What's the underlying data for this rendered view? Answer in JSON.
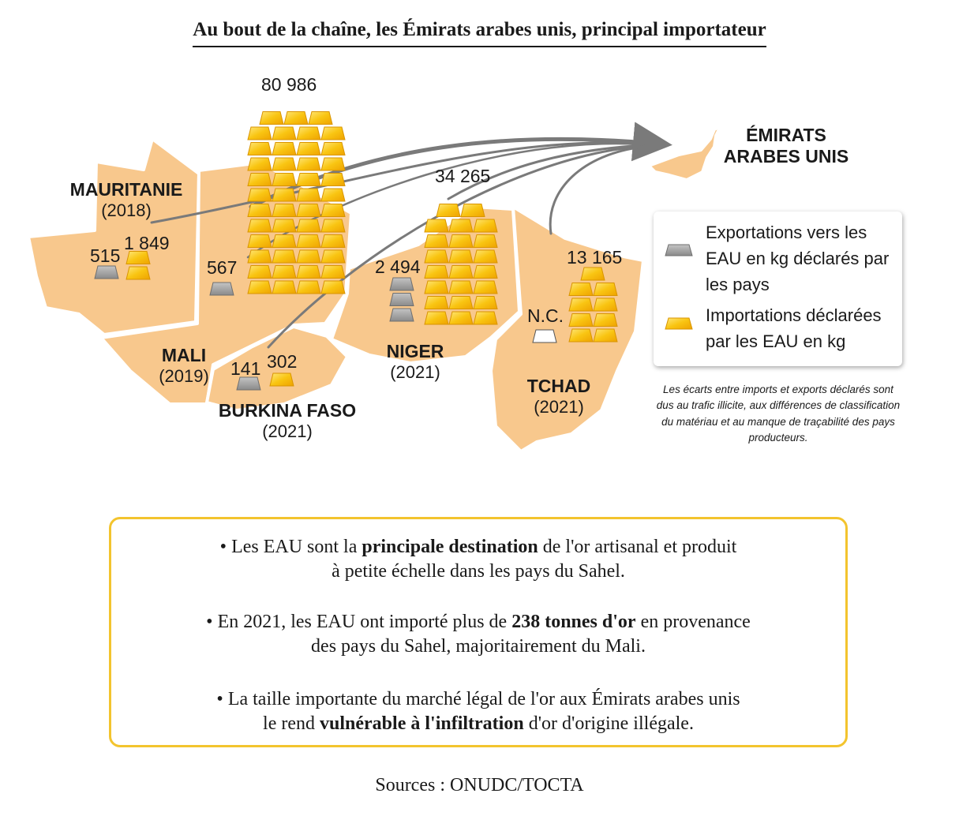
{
  "title": "Au bout de la chaîne, les Émirats arabes unis, principal importateur",
  "destination": {
    "line1": "ÉMIRATS",
    "line2": "ARABES UNIS"
  },
  "countries": [
    {
      "key": "mauritanie",
      "name": "MAURITANIE",
      "year": "(2018)",
      "exports_kg": "515",
      "imports_kg": "1 849"
    },
    {
      "key": "mali",
      "name": "MALI",
      "year": "(2019)",
      "exports_kg": "567",
      "imports_kg": "80 986"
    },
    {
      "key": "burkina",
      "name": "BURKINA FASO",
      "year": "(2021)",
      "exports_kg": "141",
      "imports_kg": "302"
    },
    {
      "key": "niger",
      "name": "NIGER",
      "year": "(2021)",
      "exports_kg": "2 494",
      "imports_kg": "34 265"
    },
    {
      "key": "tchad",
      "name": "TCHAD",
      "year": "(2021)",
      "exports_kg": "N.C.",
      "imports_kg": "13 165"
    }
  ],
  "legend": {
    "exports_label": "Exportations vers les EAU en kg déclarés par les pays",
    "imports_label": "Importations déclarées par les EAU en kg"
  },
  "note": "Les écarts entre imports et exports déclarés sont dus au trafic illicite, aux différences de classification du matériau et au manque de traçabilité des pays producteurs.",
  "facts": [
    {
      "pre": "• Les EAU sont la ",
      "bold": "principale destination",
      "post": " de l'or artisanal et produit",
      "line2": "à petite échelle dans les pays du Sahel."
    },
    {
      "pre": "• En 2021, les EAU ont importé plus de ",
      "bold": "238 tonnes d'or",
      "post": " en provenance",
      "line2": "des pays du Sahel, majoritairement du Mali."
    },
    {
      "pre": "• La taille importante du marché légal de l'or aux Émirats arabes unis",
      "line2pre": "le rend ",
      "bold": "vulnérable à l'infiltration",
      "line2post": " d'or d'origine illégale."
    }
  ],
  "sources": "Sources : ONUDC/TOCTA",
  "colors": {
    "land": "#f8c88d",
    "gold": "#f7b500",
    "gold_light": "#ffe36b",
    "silver": "#999999",
    "arrow": "#7a7a7a",
    "box_border": "#f3c42e"
  }
}
